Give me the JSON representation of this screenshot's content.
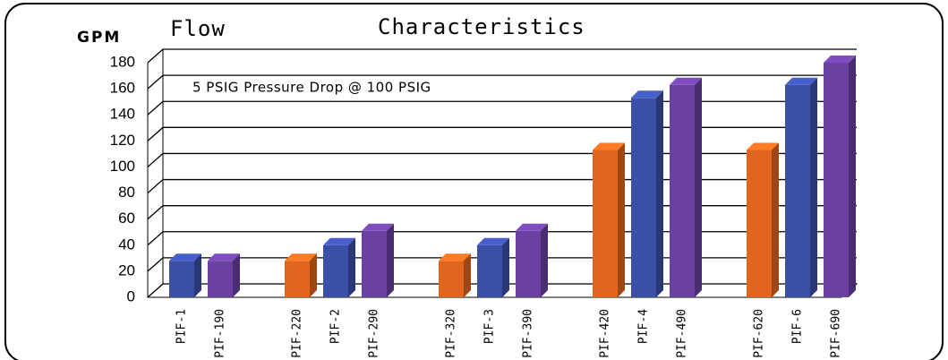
{
  "chart_data": {
    "type": "bar3d",
    "title": [
      "Flow",
      "Characteristics"
    ],
    "ylabel": "GPM",
    "annotation": "5 PSIG Pressure Drop @ 100 PSIG",
    "categories": [
      "PIF-1",
      "PIF-190",
      null,
      "PIF-220",
      "PIF-2",
      "PIF-290",
      null,
      "PIF-320",
      "PIF-3",
      "PIF-390",
      null,
      "PIF-420",
      "PIF-4",
      "PIF-490",
      null,
      "PIF-620",
      "PIF-6",
      "PIF-690"
    ],
    "values": [
      28,
      28,
      null,
      28,
      40,
      51,
      null,
      28,
      40,
      51,
      null,
      113,
      153,
      163,
      null,
      113,
      163,
      180
    ],
    "colors": [
      "#3b4fa8",
      "#6a40a0",
      null,
      "#e0661e",
      "#3b4fa8",
      "#6a40a0",
      null,
      "#e0661e",
      "#3b4fa8",
      "#6a40a0",
      null,
      "#e0661e",
      "#3b4fa8",
      "#6a40a0",
      null,
      "#e0661e",
      "#3b4fa8",
      "#6a40a0"
    ],
    "ylim": [
      0,
      180
    ],
    "yticks": [
      0,
      20,
      40,
      60,
      80,
      100,
      120,
      140,
      160,
      180
    ],
    "grid": true
  }
}
